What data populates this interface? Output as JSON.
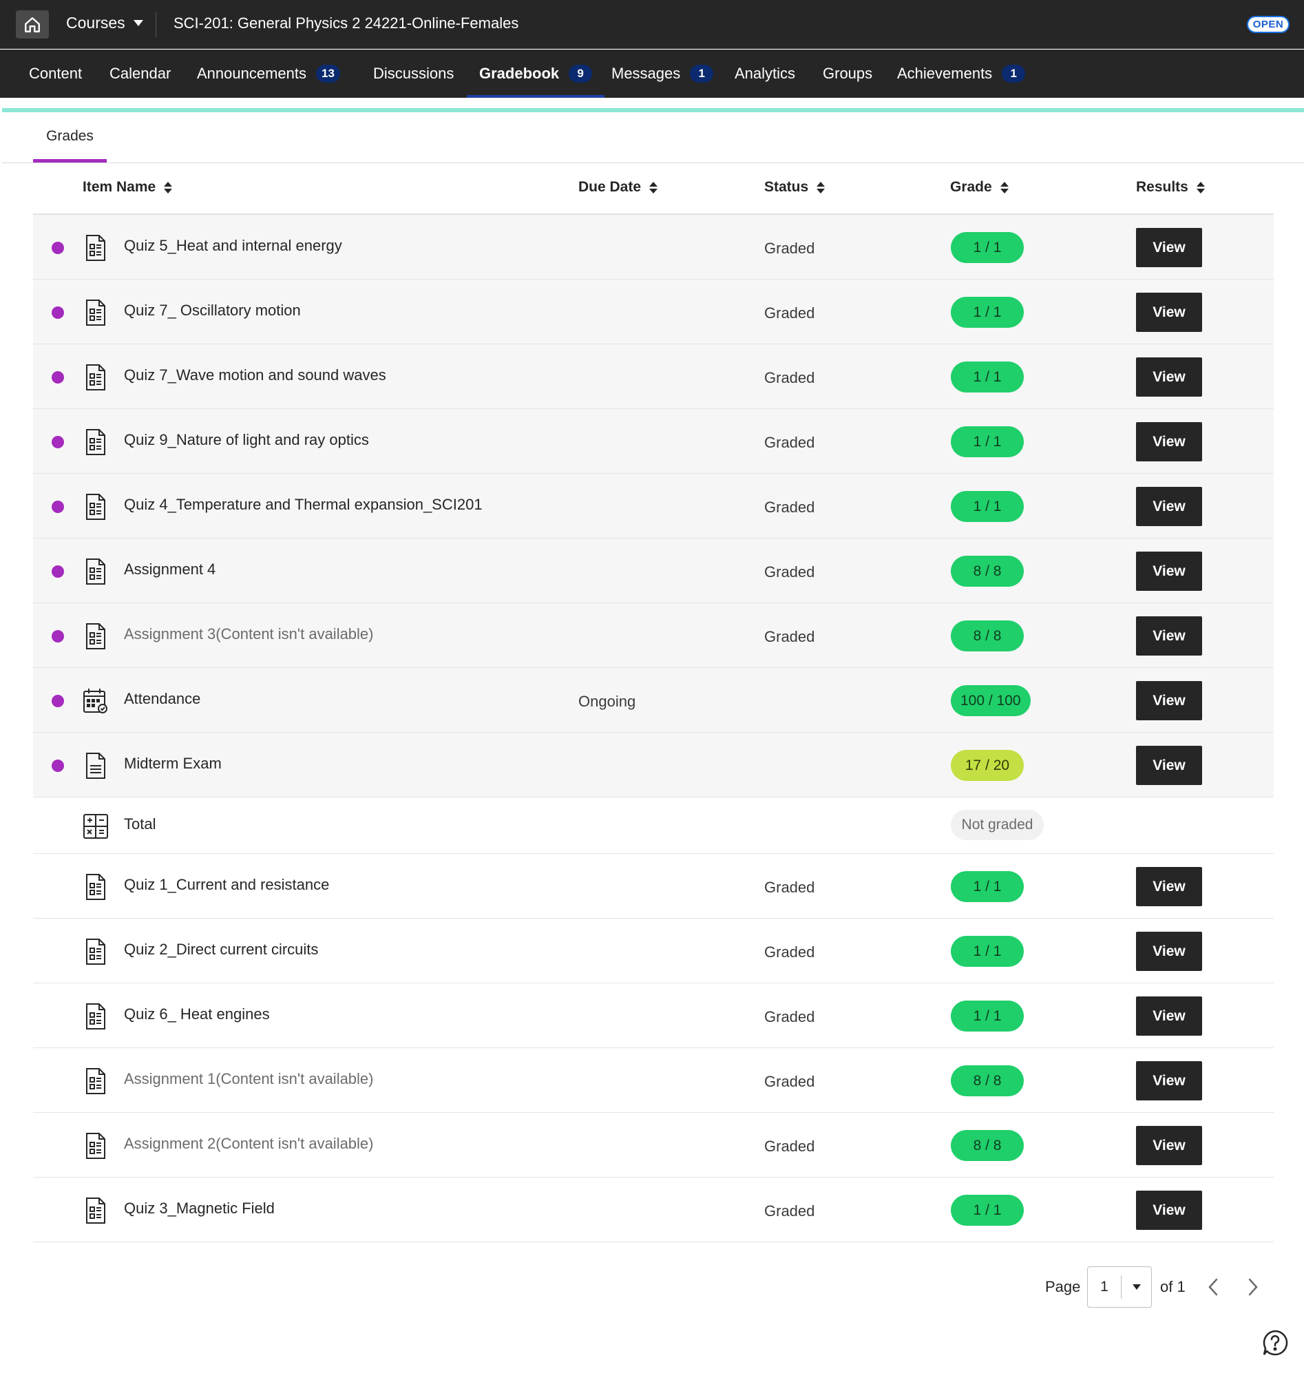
{
  "topbar": {
    "courses_label": "Courses",
    "course_title": "SCI-201: General Physics 2 24221-Online-Females",
    "open_badge": "OPEN"
  },
  "nav": {
    "items": [
      {
        "label": "Content",
        "badge": null
      },
      {
        "label": "Calendar",
        "badge": null
      },
      {
        "label": "Announcements",
        "badge": "13"
      },
      {
        "label": "Discussions",
        "badge": null
      },
      {
        "label": "Gradebook",
        "badge": "9",
        "active": true
      },
      {
        "label": "Messages",
        "badge": "1"
      },
      {
        "label": "Analytics",
        "badge": null
      },
      {
        "label": "Groups",
        "badge": null
      },
      {
        "label": "Achievements",
        "badge": "1"
      }
    ]
  },
  "tabs": {
    "grades": "Grades"
  },
  "table": {
    "headers": {
      "item_name": "Item Name",
      "due_date": "Due Date",
      "status": "Status",
      "grade": "Grade",
      "results": "Results"
    },
    "rows": [
      {
        "name": "Quiz 5_Heat and internal energy",
        "due": "",
        "status": "Graded",
        "grade": "1 / 1",
        "result": "View",
        "new": true,
        "icon": "quiz-icon",
        "dim": false,
        "grade_style": "full"
      },
      {
        "name": "Quiz 7_ Oscillatory motion",
        "due": "",
        "status": "Graded",
        "grade": "1 / 1",
        "result": "View",
        "new": true,
        "icon": "quiz-icon",
        "dim": false,
        "grade_style": "full"
      },
      {
        "name": "Quiz 7_Wave motion and sound waves",
        "due": "",
        "status": "Graded",
        "grade": "1 / 1",
        "result": "View",
        "new": true,
        "icon": "quiz-icon",
        "dim": false,
        "grade_style": "full"
      },
      {
        "name": "Quiz 9_Nature of light and ray optics",
        "due": "",
        "status": "Graded",
        "grade": "1 / 1",
        "result": "View",
        "new": true,
        "icon": "quiz-icon",
        "dim": false,
        "grade_style": "full"
      },
      {
        "name": "Quiz 4_Temperature and Thermal expansion_SCI201",
        "due": "",
        "status": "Graded",
        "grade": "1 / 1",
        "result": "View",
        "new": true,
        "icon": "quiz-icon",
        "dim": false,
        "grade_style": "full"
      },
      {
        "name": "Assignment 4",
        "due": "",
        "status": "Graded",
        "grade": "8 / 8",
        "result": "View",
        "new": true,
        "icon": "assignment-icon",
        "dim": false,
        "grade_style": "full"
      },
      {
        "name": "Assignment 3(Content isn't available)",
        "due": "",
        "status": "Graded",
        "grade": "8 / 8",
        "result": "View",
        "new": true,
        "icon": "assignment-icon",
        "dim": true,
        "grade_style": "full"
      },
      {
        "name": "Attendance",
        "due": "Ongoing",
        "status": "",
        "grade": "100 / 100",
        "result": "View",
        "new": true,
        "icon": "attendance-calendar-icon",
        "dim": false,
        "grade_style": "full"
      },
      {
        "name": "Midterm Exam",
        "due": "",
        "status": "",
        "grade": "17 / 20",
        "result": "View",
        "new": true,
        "icon": "document-icon",
        "dim": false,
        "grade_style": "mid"
      },
      {
        "name": "Total",
        "due": "",
        "status": "",
        "grade": "Not graded",
        "result": "",
        "new": false,
        "icon": "calculator-icon",
        "dim": false,
        "grade_style": "none",
        "total": true
      },
      {
        "name": "Quiz 1_Current and resistance",
        "due": "",
        "status": "Graded",
        "grade": "1 / 1",
        "result": "View",
        "new": false,
        "icon": "quiz-icon",
        "dim": false,
        "grade_style": "full"
      },
      {
        "name": "Quiz 2_Direct current circuits",
        "due": "",
        "status": "Graded",
        "grade": "1 / 1",
        "result": "View",
        "new": false,
        "icon": "quiz-icon",
        "dim": false,
        "grade_style": "full"
      },
      {
        "name": "Quiz 6_ Heat engines",
        "due": "",
        "status": "Graded",
        "grade": "1 / 1",
        "result": "View",
        "new": false,
        "icon": "quiz-icon",
        "dim": false,
        "grade_style": "full"
      },
      {
        "name": "Assignment 1(Content isn't available)",
        "due": "",
        "status": "Graded",
        "grade": "8 / 8",
        "result": "View",
        "new": false,
        "icon": "assignment-icon",
        "dim": true,
        "grade_style": "full"
      },
      {
        "name": "Assignment 2(Content isn't available)",
        "due": "",
        "status": "Graded",
        "grade": "8 / 8",
        "result": "View",
        "new": false,
        "icon": "assignment-icon",
        "dim": true,
        "grade_style": "full"
      },
      {
        "name": "Quiz 3_Magnetic Field",
        "due": "",
        "status": "Graded",
        "grade": "1 / 1",
        "result": "View",
        "new": false,
        "icon": "quiz-icon",
        "dim": false,
        "grade_style": "full"
      }
    ]
  },
  "pagination": {
    "page_label": "Page",
    "current_page": "1",
    "of_label": "of 1"
  },
  "colors": {
    "new_dot": "#a42bbd",
    "grade_full": "#1fcf6a",
    "grade_partial": "#c2e043",
    "accent_line": "#8ce6d6",
    "nav_badge": "#0b2a6f"
  }
}
